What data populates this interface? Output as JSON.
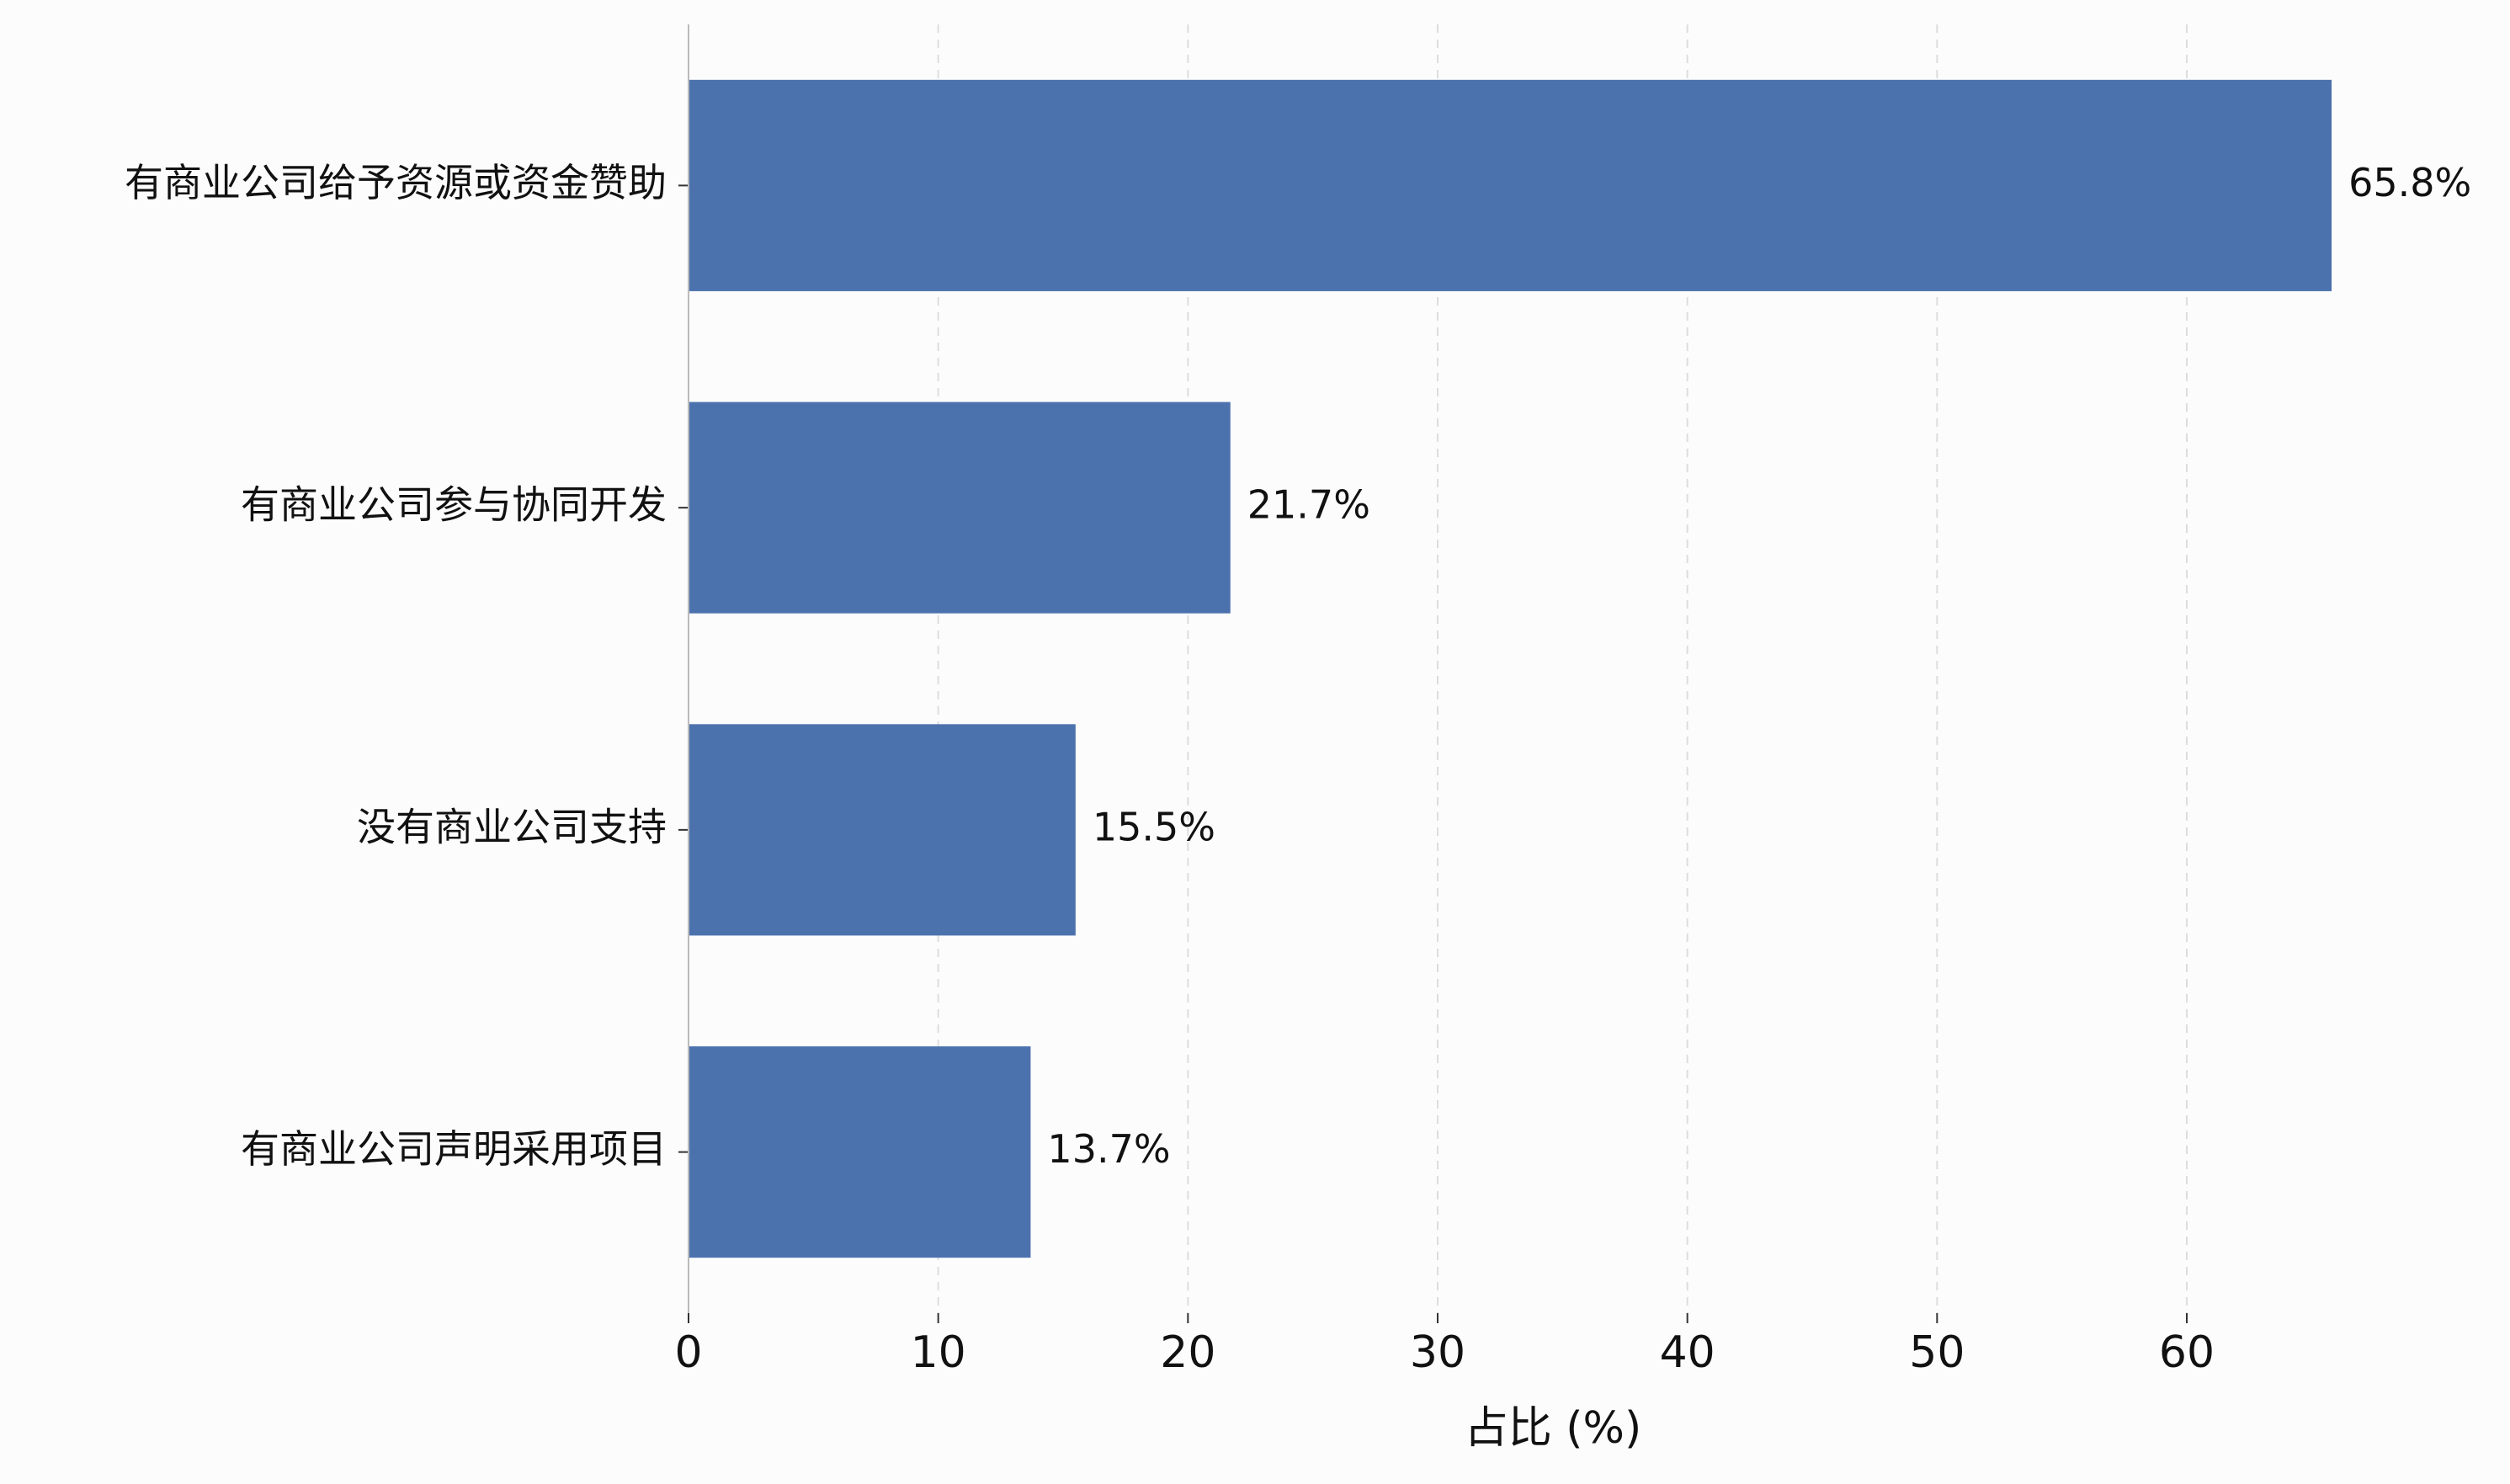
{
  "chart_data": {
    "type": "hbar",
    "xlabel": "占比 (%)",
    "categories": [
      "有商业公司给予资源或资金赞助",
      "有商业公司参与协同开发",
      "没有商业公司支持",
      "有商业公司声明采用项目"
    ],
    "values": [
      65.8,
      21.7,
      15.5,
      13.7
    ],
    "value_labels": [
      "65.8%",
      "21.7%",
      "15.5%",
      "13.7%"
    ],
    "color": "#4c72ae",
    "xlim": [
      0,
      69
    ],
    "xticks": [
      0,
      10,
      20,
      30,
      40,
      50,
      60
    ],
    "grid": true
  }
}
